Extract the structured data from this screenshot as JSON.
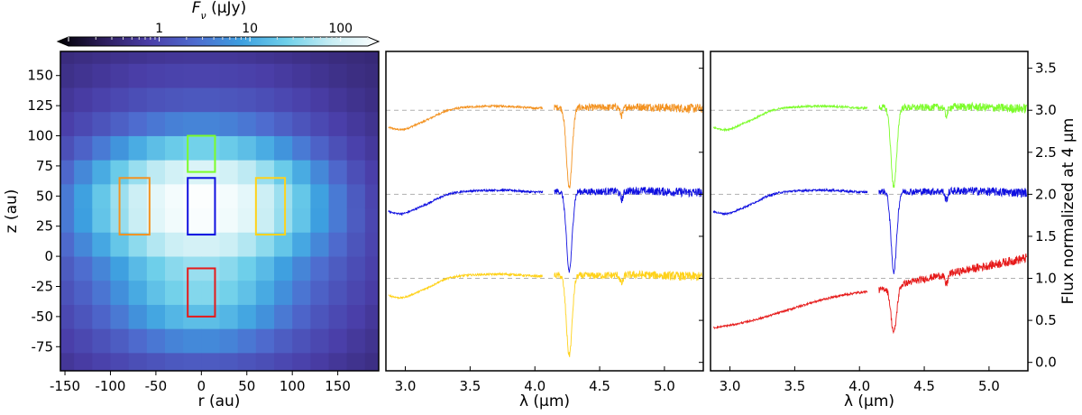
{
  "colorbar": {
    "label_prefix": "F",
    "label_sub": "ν",
    "label_unit": " (μJy)",
    "ticks": [
      {
        "label": "1",
        "value": 1
      },
      {
        "label": "10",
        "value": 10
      },
      {
        "label": "100",
        "value": 100
      }
    ],
    "range": [
      0.1,
      200
    ],
    "scale": "log",
    "colors": [
      "#000000",
      "#2d1e5c",
      "#4a3ea8",
      "#4e6ccf",
      "#3d9fe0",
      "#6fd0ea",
      "#c9eef4",
      "#ffffff"
    ]
  },
  "chart_data": [
    {
      "type": "heatmap",
      "xlabel": "r (au)",
      "ylabel": "z (au)",
      "xlim": [
        -155,
        195
      ],
      "ylim": [
        -95,
        170
      ],
      "x_ticks": [
        -150,
        -100,
        -50,
        0,
        50,
        100,
        150
      ],
      "y_ticks": [
        -75,
        -50,
        -25,
        0,
        25,
        50,
        75,
        100,
        125,
        150
      ],
      "cell_size": 20,
      "color_scale": "log",
      "regions": [
        {
          "name": "green",
          "color": "#7cfc2a",
          "r": [
            -15,
            15
          ],
          "z": [
            70,
            100
          ]
        },
        {
          "name": "orange",
          "color": "#f39220",
          "r": [
            -90,
            -57
          ],
          "z": [
            18,
            65
          ]
        },
        {
          "name": "blue",
          "color": "#1010e0",
          "r": [
            -15,
            15
          ],
          "z": [
            18,
            65
          ]
        },
        {
          "name": "yellow",
          "color": "#ffd21a",
          "r": [
            60,
            92
          ],
          "z": [
            18,
            65
          ]
        },
        {
          "name": "red",
          "color": "#e61a1a",
          "r": [
            -15,
            15
          ],
          "z": [
            -50,
            -10
          ]
        }
      ]
    },
    {
      "type": "line",
      "xlabel": "λ (μm)",
      "xlim": [
        2.85,
        5.3
      ],
      "ylim": [
        -0.1,
        3.7
      ],
      "x_ticks": [
        3.0,
        3.5,
        4.0,
        4.5,
        5.0
      ],
      "reference_lines": [
        1.0,
        2.0,
        3.0
      ],
      "series": [
        {
          "color": "#f39220",
          "offset": 2.0,
          "shape": "stellar"
        },
        {
          "color": "#1010e0",
          "offset": 1.0,
          "shape": "stellar"
        },
        {
          "color": "#ffd21a",
          "offset": 0.0,
          "shape": "stellar"
        }
      ]
    },
    {
      "type": "line",
      "xlabel": "λ (μm)",
      "ylabel": "Flux normalized at 4 μm",
      "xlim": [
        2.85,
        5.3
      ],
      "ylim": [
        -0.1,
        3.7
      ],
      "x_ticks": [
        3.0,
        3.5,
        4.0,
        4.5,
        5.0
      ],
      "y_ticks": [
        0.0,
        0.5,
        1.0,
        1.5,
        2.0,
        2.5,
        3.0,
        3.5
      ],
      "reference_lines": [
        1.0,
        2.0,
        3.0
      ],
      "series": [
        {
          "color": "#7cfc2a",
          "offset": 2.0,
          "shape": "stellar"
        },
        {
          "color": "#1010e0",
          "offset": 1.0,
          "shape": "stellar"
        },
        {
          "color": "#e61a1a",
          "offset": 0.0,
          "shape": "rising"
        }
      ]
    }
  ]
}
